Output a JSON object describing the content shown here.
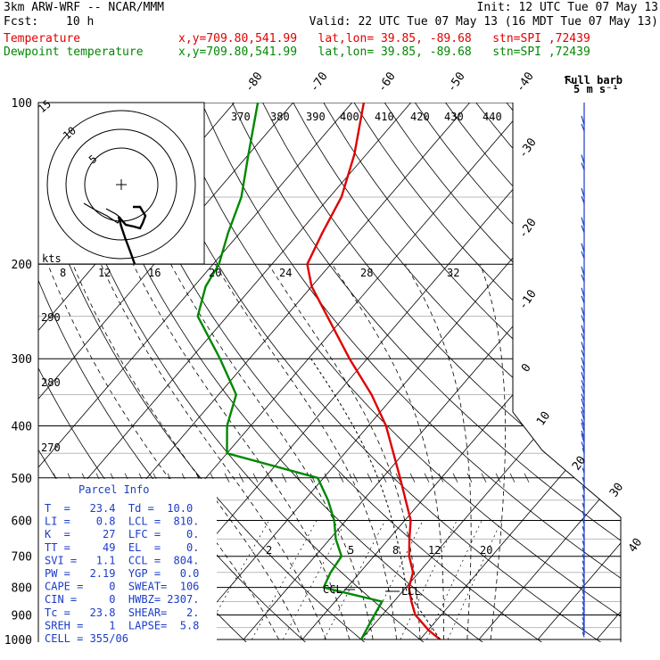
{
  "header": {
    "model": "3km ARW-WRF -- NCAR/MMM",
    "init": "Init: 12 UTC Tue 07 May 13",
    "fcst_label": "Fcst:",
    "fcst_value": "10 h",
    "valid": "Valid: 22 UTC Tue 07 May 13 (16 MDT Tue 07 May 13)",
    "temp_label": "Temperature",
    "temp_info": "x,y=709.80,541.99   lat,lon= 39.85, -89.68   stn=SPI ,72439",
    "dew_label": "Dewpoint temperature",
    "dew_info": "x,y=709.80,541.99   lat,lon= 39.85, -89.68   stn=SPI ,72439",
    "barb_title_1": "Full barb",
    "barb_title_2": "5 m s⁻¹"
  },
  "parcel": {
    "title": "Parcel Info",
    "rows": [
      "T  =   23.4  Td =  10.0",
      "LI =    0.8  LCL =  810.",
      "K  =     27  LFC =    0.",
      "TT =     49  EL  =    0.",
      "SVI =   1.1  CCL =  804.",
      "PW =   2.19  YGP =   0.0",
      "CAPE =    0  SWEAT=  106",
      "CIN =     0  HWBZ= 2307.",
      "Tc =   23.8  SHEAR=   2.",
      "SREH =    1  LAPSE=  5.8",
      "CELL = 355/06"
    ]
  },
  "hodograph": {
    "ring_labels": [
      "5",
      "10",
      "15"
    ],
    "units": "kts"
  },
  "colors": {
    "temperature": "#e00000",
    "dewpoint": "#008800",
    "barbs": "#1a3cc8"
  },
  "chart_data": {
    "type": "line",
    "title": "",
    "pressure_levels": [
      100,
      200,
      300,
      400,
      500,
      600,
      700,
      800,
      900,
      1000
    ],
    "pressure_labels": [
      "100",
      "200",
      "300",
      "400",
      "500",
      "600",
      "700",
      "800",
      "900",
      "1000"
    ],
    "isotherm_labels": [
      "-80",
      "-70",
      "-60",
      "-50",
      "-40",
      "-30",
      "-20",
      "-10",
      "0",
      "10",
      "20",
      "30",
      "40"
    ],
    "theta_labels_top": [
      "370",
      "380",
      "390",
      "400",
      "410",
      "420",
      "430",
      "440"
    ],
    "theta_labels_left": [
      "290",
      "280",
      "270"
    ],
    "mixing_ratio_labels_top": [
      "8",
      "12",
      "16",
      "20",
      "24",
      "28",
      "32"
    ],
    "mixing_ratio_labels_low": [
      "2",
      "5",
      "8",
      "12",
      "20"
    ],
    "markers": [
      "LCL",
      "CCL"
    ],
    "series": [
      {
        "name": "Temperature",
        "points": [
          [
            1000,
            23.4
          ],
          [
            960,
            20.0
          ],
          [
            925,
            17.5
          ],
          [
            900,
            15.6
          ],
          [
            850,
            13.0
          ],
          [
            800,
            10.5
          ],
          [
            750,
            9.0
          ],
          [
            700,
            6.0
          ],
          [
            650,
            3.5
          ],
          [
            600,
            1.0
          ],
          [
            500,
            -7.0
          ],
          [
            400,
            -17.0
          ],
          [
            350,
            -24.0
          ],
          [
            300,
            -33.0
          ],
          [
            250,
            -43.0
          ],
          [
            220,
            -50.0
          ],
          [
            200,
            -54.0
          ],
          [
            175,
            -56.0
          ],
          [
            150,
            -58.0
          ],
          [
            125,
            -62.0
          ],
          [
            100,
            -68.0
          ]
        ]
      },
      {
        "name": "Dewpoint temperature",
        "points": [
          [
            1000,
            10.0
          ],
          [
            925,
            9.0
          ],
          [
            850,
            8.0
          ],
          [
            800,
            -4.0
          ],
          [
            750,
            -5.0
          ],
          [
            700,
            -5.5
          ],
          [
            650,
            -9.0
          ],
          [
            600,
            -12.0
          ],
          [
            550,
            -16.0
          ],
          [
            500,
            -21.0
          ],
          [
            450,
            -40.0
          ],
          [
            400,
            -44.0
          ],
          [
            350,
            -47.0
          ],
          [
            300,
            -55.0
          ],
          [
            250,
            -65.0
          ],
          [
            220,
            -68.0
          ],
          [
            200,
            -69.0
          ],
          [
            175,
            -72.0
          ],
          [
            150,
            -75.0
          ],
          [
            125,
            -80.0
          ],
          [
            100,
            -86.0
          ]
        ]
      }
    ]
  }
}
